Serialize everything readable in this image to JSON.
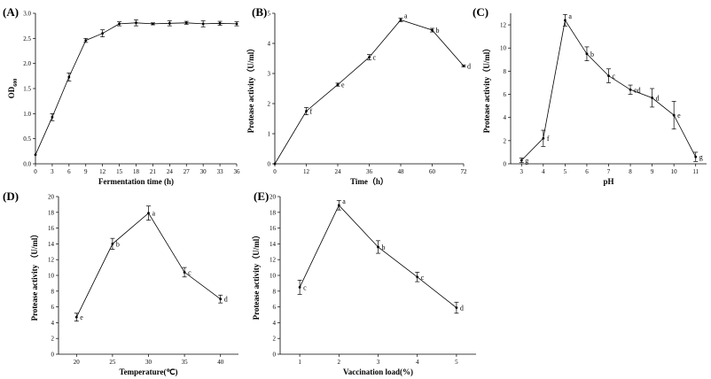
{
  "chart_data": [
    {
      "panel": "(A)",
      "type": "line",
      "xlabel_main": "Fermentation time ",
      "xlabel_unit": "(h)",
      "ylabel_main": "OD",
      "ylabel_sub": "600",
      "xlim": [
        0,
        36
      ],
      "ylim": [
        0,
        3.0
      ],
      "xticks": [
        "0",
        "3",
        "6",
        "9",
        "12",
        "15",
        "18",
        "21",
        "24",
        "27",
        "30",
        "33",
        "36"
      ],
      "xtick_values": [
        0,
        3,
        6,
        9,
        12,
        15,
        18,
        21,
        24,
        27,
        30,
        33,
        36
      ],
      "yticks": [
        "0.0",
        "0.5",
        "1.0",
        "1.5",
        "2.0",
        "2.5",
        "3.0"
      ],
      "ytick_values": [
        0,
        0.5,
        1.0,
        1.5,
        2.0,
        2.5,
        3.0
      ],
      "x": [
        0,
        3,
        6,
        9,
        12,
        15,
        18,
        21,
        24,
        27,
        30,
        33,
        36
      ],
      "y": [
        0.18,
        0.93,
        1.73,
        2.46,
        2.6,
        2.79,
        2.81,
        2.79,
        2.8,
        2.81,
        2.79,
        2.8,
        2.79
      ],
      "err": [
        0,
        0.07,
        0.08,
        0.04,
        0.07,
        0.04,
        0.06,
        0.02,
        0.05,
        0.03,
        0.06,
        0.04,
        0.04
      ],
      "point_labels": []
    },
    {
      "panel": "(B)",
      "type": "line",
      "xlabel_main": "Time",
      "xlabel_unit": "（h）",
      "ylabel_main": "Protease activity（U/ml）",
      "ylabel_sub": "",
      "xlim": [
        0,
        72
      ],
      "ylim": [
        0,
        5
      ],
      "xticks": [
        "0",
        "12",
        "24",
        "36",
        "48",
        "60",
        "72"
      ],
      "xtick_values": [
        0,
        12,
        24,
        36,
        48,
        60,
        72
      ],
      "yticks": [
        "0",
        "1",
        "2",
        "3",
        "4",
        "5"
      ],
      "ytick_values": [
        0,
        1,
        2,
        3,
        4,
        5
      ],
      "x": [
        0,
        12,
        24,
        36,
        48,
        60,
        72
      ],
      "y": [
        0,
        1.75,
        2.63,
        3.54,
        4.78,
        4.44,
        3.25
      ],
      "err": [
        0,
        0.12,
        0.05,
        0.09,
        0.06,
        0.06,
        0.03
      ],
      "point_labels": [
        "",
        "f",
        "e",
        "c",
        "a",
        "b",
        "d"
      ]
    },
    {
      "panel": "(C)",
      "type": "line",
      "xlabel_main": "pH",
      "xlabel_unit": "",
      "ylabel_main": "Protease activity（U/ml）",
      "ylabel_sub": "",
      "xlim": [
        2.5,
        11.5
      ],
      "ylim": [
        0,
        13
      ],
      "xticks": [
        "3",
        "4",
        "5",
        "6",
        "7",
        "8",
        "9",
        "10",
        "11"
      ],
      "xtick_values": [
        3,
        4,
        5,
        6,
        7,
        8,
        9,
        10,
        11
      ],
      "yticks": [
        "0",
        "2",
        "4",
        "6",
        "8",
        "10",
        "12"
      ],
      "ytick_values": [
        0,
        2,
        4,
        6,
        8,
        10,
        12
      ],
      "x": [
        3,
        4,
        5,
        6,
        7,
        8,
        9,
        10,
        11
      ],
      "y": [
        0.3,
        2.2,
        12.4,
        9.5,
        7.6,
        6.4,
        5.7,
        4.2,
        0.6
      ],
      "err": [
        0.2,
        0.7,
        0.5,
        0.6,
        0.6,
        0.4,
        0.8,
        1.2,
        0.4
      ],
      "point_labels": [
        "g",
        "f",
        "a",
        "b",
        "c",
        "ed",
        "d",
        "e",
        "g"
      ]
    },
    {
      "panel": "(D)",
      "type": "line",
      "xlabel_main": "Temperature(℃)",
      "xlabel_unit": "",
      "ylabel_main": "Protease activity （U/ml）",
      "ylabel_sub": "",
      "xlim": [
        17.5,
        42.5
      ],
      "ylim": [
        0,
        20
      ],
      "xticks": [
        "20",
        "25",
        "30",
        "35",
        "40"
      ],
      "xtick_values": [
        20,
        25,
        30,
        35,
        40
      ],
      "yticks": [
        "0",
        "2",
        "4",
        "6",
        "8",
        "10",
        "12",
        "14",
        "16",
        "18",
        "20"
      ],
      "ytick_values": [
        0,
        2,
        4,
        6,
        8,
        10,
        12,
        14,
        16,
        18,
        20
      ],
      "x": [
        20,
        25,
        30,
        35,
        40
      ],
      "y": [
        4.7,
        14.0,
        17.9,
        10.4,
        7.0
      ],
      "err": [
        0.5,
        0.7,
        0.9,
        0.6,
        0.5
      ],
      "point_labels": [
        "e",
        "b",
        "a",
        "c",
        "d"
      ]
    },
    {
      "panel": "(E)",
      "type": "line",
      "xlabel_main": "Vaccination load(%)",
      "xlabel_unit": "",
      "ylabel_main": "Protease activity（U/ml）",
      "ylabel_sub": "",
      "xlim": [
        0.5,
        5.5
      ],
      "ylim": [
        0,
        20
      ],
      "xticks": [
        "1",
        "2",
        "3",
        "4",
        "5"
      ],
      "xtick_values": [
        1,
        2,
        3,
        4,
        5
      ],
      "yticks": [
        "0",
        "2",
        "4",
        "6",
        "8",
        "10",
        "12",
        "14",
        "16",
        "18",
        "20"
      ],
      "ytick_values": [
        0,
        2,
        4,
        6,
        8,
        10,
        12,
        14,
        16,
        18,
        20
      ],
      "x": [
        1,
        2,
        3,
        4,
        5
      ],
      "y": [
        8.5,
        18.9,
        13.6,
        9.8,
        5.9
      ],
      "err": [
        0.9,
        0.6,
        0.8,
        0.6,
        0.7
      ],
      "point_labels": [
        "c",
        "a",
        "b",
        "c",
        "d"
      ]
    }
  ]
}
